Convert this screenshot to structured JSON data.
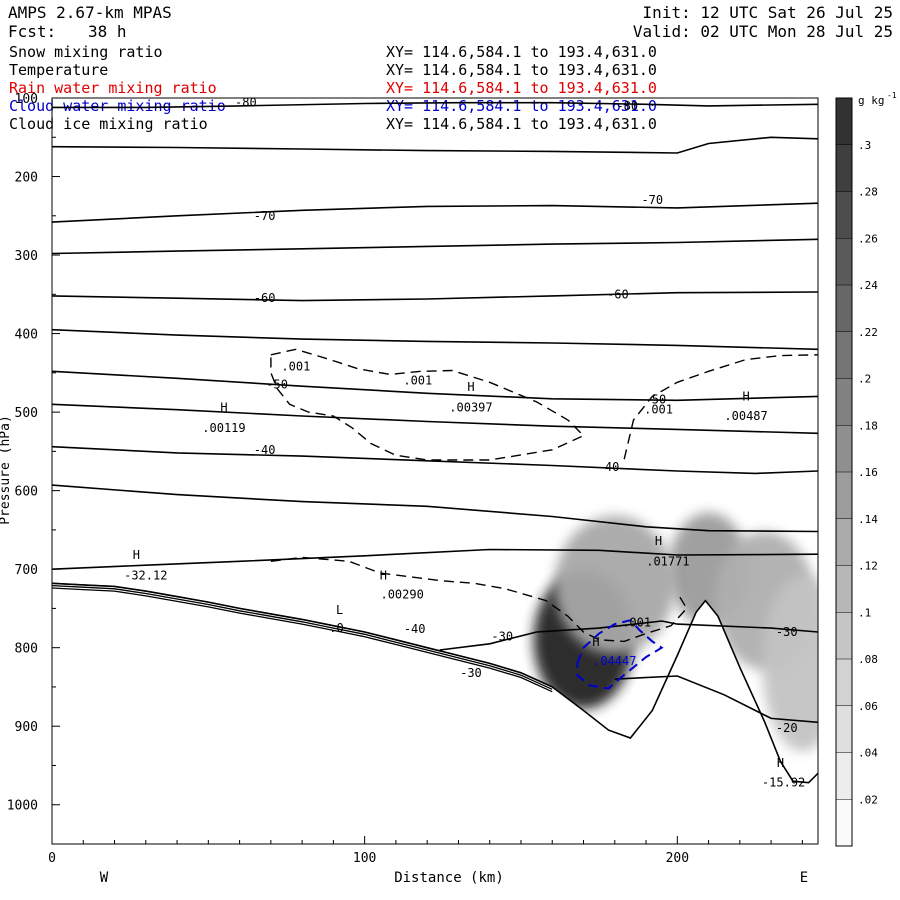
{
  "header": {
    "model": "AMPS 2.67-km MPAS",
    "fcst_label": "Fcst:",
    "fcst_value": "38 h",
    "init": "Init: 12 UTC Sat 26 Jul 25",
    "valid": "Valid: 02 UTC Mon 28 Jul 25"
  },
  "fields": [
    {
      "name": "Snow mixing ratio",
      "xy": "XY= 114.6,584.1 to 193.4,631.0",
      "color": "#000000"
    },
    {
      "name": "Temperature",
      "xy": "XY= 114.6,584.1 to 193.4,631.0",
      "color": "#000000"
    },
    {
      "name": "Rain water mixing ratio",
      "xy": "XY= 114.6,584.1 to 193.4,631.0",
      "color": "#e00000"
    },
    {
      "name": "Cloud water mixing ratio",
      "xy": "XY= 114.6,584.1 to 193.4,631.0",
      "color": "#0000cc"
    },
    {
      "name": "Cloud ice mixing ratio",
      "xy": "XY= 114.6,584.1 to 193.4,631.0",
      "color": "#000000"
    }
  ],
  "chart_data": {
    "type": "cross-section",
    "xlabel": "Distance (km)",
    "ylabel": "Pressure (hPa)",
    "xlim": [
      0,
      245
    ],
    "ylim": [
      1050,
      100
    ],
    "x_ticks": [
      "0",
      "100",
      "200"
    ],
    "x_tick_values": [
      0,
      100,
      200
    ],
    "y_ticks": [
      "100",
      "200",
      "300",
      "400",
      "500",
      "600",
      "700",
      "800",
      "900",
      "1000"
    ],
    "y_tick_values": [
      100,
      200,
      300,
      400,
      500,
      600,
      700,
      800,
      900,
      1000
    ],
    "west_label": "W",
    "east_label": "E",
    "colorbar": {
      "unit": "g kg",
      "unit_exp": "-1",
      "labels": [
        ".02",
        ".04",
        ".06",
        ".08",
        ".1",
        ".12",
        ".14",
        ".16",
        ".18",
        ".2",
        ".22",
        ".24",
        ".26",
        ".28",
        ".3"
      ],
      "values": [
        0.02,
        0.04,
        0.06,
        0.08,
        0.1,
        0.12,
        0.14,
        0.16,
        0.18,
        0.2,
        0.22,
        0.24,
        0.26,
        0.28,
        0.3
      ],
      "max": 0.32
    },
    "terrain": [
      [
        0,
        718
      ],
      [
        10,
        720
      ],
      [
        20,
        722
      ],
      [
        30,
        728
      ],
      [
        40,
        735
      ],
      [
        50,
        742
      ],
      [
        60,
        750
      ],
      [
        70,
        757
      ],
      [
        80,
        764
      ],
      [
        90,
        772
      ],
      [
        100,
        780
      ],
      [
        110,
        790
      ],
      [
        120,
        800
      ],
      [
        130,
        810
      ],
      [
        140,
        820
      ],
      [
        150,
        832
      ],
      [
        160,
        850
      ],
      [
        170,
        880
      ],
      [
        178,
        905
      ],
      [
        185,
        915
      ],
      [
        192,
        880
      ],
      [
        200,
        810
      ],
      [
        206,
        755
      ],
      [
        209,
        740
      ],
      [
        213,
        760
      ],
      [
        220,
        825
      ],
      [
        228,
        895
      ],
      [
        233,
        945
      ],
      [
        237,
        970
      ],
      [
        242,
        972
      ],
      [
        245,
        960
      ]
    ],
    "temperature_contours": [
      {
        "label": "-80",
        "points": [
          [
            0,
            112
          ],
          [
            30,
            112
          ],
          [
            60,
            110
          ],
          [
            100,
            107
          ],
          [
            130,
            106
          ],
          [
            160,
            106
          ],
          [
            190,
            108
          ],
          [
            210,
            110
          ],
          [
            245,
            108
          ]
        ]
      },
      {
        "label": "",
        "points": [
          [
            0,
            162
          ],
          [
            40,
            163
          ],
          [
            80,
            165
          ],
          [
            120,
            167
          ],
          [
            160,
            168
          ],
          [
            200,
            170
          ],
          [
            210,
            158
          ],
          [
            230,
            150
          ],
          [
            245,
            152
          ]
        ]
      },
      {
        "label": "-70",
        "points": [
          [
            0,
            258
          ],
          [
            40,
            250
          ],
          [
            80,
            243
          ],
          [
            120,
            238
          ],
          [
            160,
            237
          ],
          [
            200,
            240
          ],
          [
            245,
            234
          ]
        ]
      },
      {
        "label": "",
        "points": [
          [
            0,
            298
          ],
          [
            40,
            295
          ],
          [
            80,
            292
          ],
          [
            120,
            289
          ],
          [
            160,
            286
          ],
          [
            200,
            284
          ],
          [
            245,
            280
          ]
        ]
      },
      {
        "label": "-60",
        "points": [
          [
            0,
            352
          ],
          [
            40,
            355
          ],
          [
            80,
            358
          ],
          [
            120,
            356
          ],
          [
            160,
            352
          ],
          [
            200,
            348
          ],
          [
            245,
            347
          ]
        ]
      },
      {
        "label": "",
        "points": [
          [
            0,
            395
          ],
          [
            40,
            402
          ],
          [
            80,
            407
          ],
          [
            120,
            410
          ],
          [
            160,
            412
          ],
          [
            200,
            415
          ],
          [
            245,
            420
          ]
        ]
      },
      {
        "label": "-50",
        "points": [
          [
            0,
            448
          ],
          [
            40,
            457
          ],
          [
            80,
            467
          ],
          [
            120,
            476
          ],
          [
            160,
            483
          ],
          [
            200,
            485
          ],
          [
            245,
            480
          ]
        ]
      },
      {
        "label": "",
        "points": [
          [
            0,
            490
          ],
          [
            40,
            497
          ],
          [
            80,
            505
          ],
          [
            120,
            512
          ],
          [
            160,
            518
          ],
          [
            200,
            522
          ],
          [
            245,
            527
          ]
        ]
      },
      {
        "label": "-40",
        "points": [
          [
            0,
            544
          ],
          [
            40,
            552
          ],
          [
            80,
            556
          ],
          [
            120,
            562
          ],
          [
            160,
            568
          ],
          [
            200,
            575
          ],
          [
            225,
            578
          ],
          [
            245,
            575
          ]
        ]
      },
      {
        "label": "",
        "points": [
          [
            0,
            593
          ],
          [
            40,
            605
          ],
          [
            80,
            614
          ],
          [
            120,
            620
          ],
          [
            160,
            633
          ],
          [
            190,
            646
          ],
          [
            210,
            651
          ],
          [
            245,
            652
          ]
        ]
      },
      {
        "label": "",
        "points": [
          [
            0,
            700
          ],
          [
            30,
            695
          ],
          [
            60,
            690
          ],
          [
            100,
            683
          ],
          [
            140,
            675
          ],
          [
            175,
            676
          ],
          [
            200,
            682
          ],
          [
            245,
            681
          ]
        ]
      },
      {
        "label": "-30",
        "points": [
          [
            124,
            803
          ],
          [
            140,
            795
          ],
          [
            155,
            780
          ],
          [
            175,
            775
          ],
          [
            195,
            766
          ],
          [
            200,
            770
          ],
          [
            230,
            775
          ],
          [
            245,
            780
          ]
        ]
      },
      {
        "label": "-20",
        "points": [
          [
            180,
            840
          ],
          [
            200,
            836
          ],
          [
            215,
            860
          ],
          [
            230,
            890
          ],
          [
            245,
            895
          ]
        ]
      }
    ],
    "ice_contours": [
      {
        "label": ".001",
        "points": [
          [
            70,
            427
          ],
          [
            78,
            420
          ],
          [
            88,
            432
          ],
          [
            98,
            445
          ],
          [
            108,
            452
          ],
          [
            118,
            448
          ],
          [
            128,
            447
          ],
          [
            140,
            462
          ],
          [
            155,
            487
          ],
          [
            165,
            510
          ],
          [
            170,
            530
          ],
          [
            160,
            548
          ],
          [
            140,
            561
          ],
          [
            120,
            561
          ],
          [
            110,
            555
          ],
          [
            102,
            540
          ],
          [
            96,
            520
          ],
          [
            90,
            505
          ],
          [
            82,
            500
          ],
          [
            76,
            490
          ],
          [
            72,
            470
          ],
          [
            70,
            450
          ],
          [
            70,
            427
          ]
        ]
      },
      {
        "label": ".001",
        "points": [
          [
            183,
            560
          ],
          [
            186,
            510
          ],
          [
            192,
            480
          ],
          [
            200,
            462
          ],
          [
            210,
            448
          ],
          [
            222,
            433
          ],
          [
            233,
            428
          ],
          [
            245,
            427
          ]
        ]
      },
      {
        "label": ".00290",
        "points": [
          [
            70,
            690
          ],
          [
            80,
            685
          ],
          [
            95,
            690
          ],
          [
            105,
            705
          ],
          [
            115,
            710
          ],
          [
            125,
            715
          ],
          [
            135,
            718
          ],
          [
            145,
            725
          ],
          [
            158,
            740
          ],
          [
            165,
            760
          ],
          [
            170,
            780
          ],
          [
            175,
            790
          ],
          [
            183,
            792
          ],
          [
            190,
            782
          ],
          [
            198,
            772
          ],
          [
            203,
            750
          ],
          [
            200,
            730
          ]
        ]
      }
    ],
    "cloud_water_contours": [
      {
        "label": ".04447",
        "points": [
          [
            168,
            820
          ],
          [
            170,
            800
          ],
          [
            175,
            782
          ],
          [
            180,
            770
          ],
          [
            185,
            765
          ],
          [
            188,
            778
          ],
          [
            192,
            792
          ],
          [
            195,
            800
          ],
          [
            190,
            812
          ],
          [
            186,
            825
          ],
          [
            182,
            838
          ],
          [
            178,
            852
          ],
          [
            172,
            848
          ],
          [
            168,
            835
          ],
          [
            168,
            820
          ]
        ]
      }
    ],
    "snow_blobs": [
      {
        "x": 170,
        "p": 790,
        "amp": 0.3,
        "sx": 10,
        "sp": 55
      },
      {
        "x": 180,
        "p": 720,
        "amp": 0.1,
        "sx": 12,
        "sp": 55
      },
      {
        "x": 210,
        "p": 700,
        "amp": 0.12,
        "sx": 8,
        "sp": 45
      },
      {
        "x": 228,
        "p": 740,
        "amp": 0.09,
        "sx": 10,
        "sp": 55
      },
      {
        "x": 240,
        "p": 820,
        "amp": 0.06,
        "sx": 8,
        "sp": 70
      }
    ],
    "annotations": [
      {
        "text": "-80",
        "x": 62,
        "p": 106
      },
      {
        "text": "-80",
        "x": 184,
        "p": 110
      },
      {
        "text": "-70",
        "x": 68,
        "p": 250
      },
      {
        "text": "-70",
        "x": 192,
        "p": 230
      },
      {
        "text": "-60",
        "x": 68,
        "p": 355
      },
      {
        "text": "-60",
        "x": 181,
        "p": 350
      },
      {
        "text": "-50",
        "x": 72,
        "p": 465
      },
      {
        "text": "-50",
        "x": 193,
        "p": 484
      },
      {
        "text": "-40",
        "x": 68,
        "p": 548
      },
      {
        "text": "-40",
        "x": 178,
        "p": 570
      },
      {
        "text": "-30",
        "x": 144,
        "p": 786
      },
      {
        "text": "-30",
        "x": 134,
        "p": 832
      },
      {
        "text": "-40",
        "x": 116,
        "p": 776
      },
      {
        "text": "-30",
        "x": 235,
        "p": 780
      },
      {
        "text": "-20",
        "x": 235,
        "p": 902
      },
      {
        "text": "H",
        "x": 55,
        "p": 494
      },
      {
        "text": ".00119",
        "x": 55,
        "p": 520
      },
      {
        "text": "H",
        "x": 134,
        "p": 468
      },
      {
        "text": ".00397",
        "x": 134,
        "p": 494
      },
      {
        "text": "H",
        "x": 222,
        "p": 480
      },
      {
        "text": ".00487",
        "x": 222,
        "p": 505
      },
      {
        "text": "H",
        "x": 27,
        "p": 682
      },
      {
        "text": "-32.12",
        "x": 30,
        "p": 708
      },
      {
        "text": "H",
        "x": 106,
        "p": 708
      },
      {
        "text": ".00290",
        "x": 112,
        "p": 732
      },
      {
        "text": "L",
        "x": 92,
        "p": 752
      },
      {
        "text": ".0",
        "x": 91,
        "p": 775
      },
      {
        "text": "H",
        "x": 194,
        "p": 664
      },
      {
        "text": ".01771",
        "x": 197,
        "p": 690
      },
      {
        "text": ".001",
        "x": 78,
        "p": 442
      },
      {
        "text": ".001",
        "x": 117,
        "p": 460
      },
      {
        "text": ".001",
        "x": 194,
        "p": 497
      },
      {
        "text": ".001",
        "x": 187,
        "p": 768
      },
      {
        "text": "H",
        "x": 174,
        "p": 793
      },
      {
        "text": ".04447",
        "x": 180,
        "p": 817,
        "color": "#0000cc"
      },
      {
        "text": "H",
        "x": 233,
        "p": 947
      },
      {
        "text": "-15.92",
        "x": 234,
        "p": 972
      }
    ]
  }
}
